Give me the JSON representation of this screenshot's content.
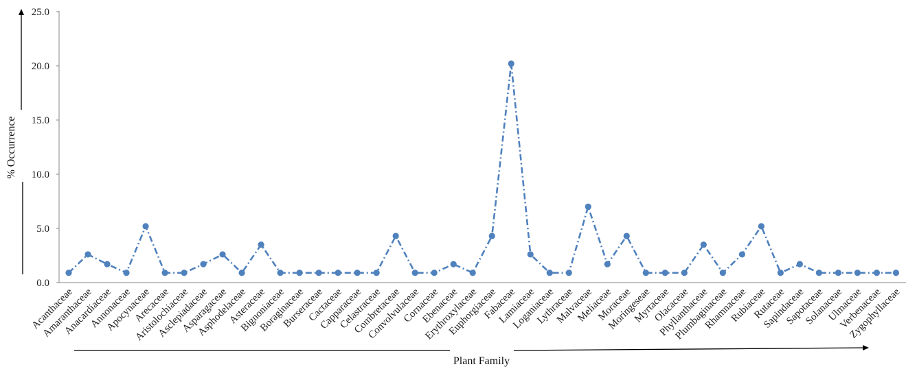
{
  "chart_data": {
    "type": "line",
    "xlabel": "Plant Family",
    "ylabel": "% Occurrence",
    "ylim": [
      0,
      25
    ],
    "yticks": [
      "0.0",
      "5.0",
      "10.0",
      "15.0",
      "20.0",
      "25.0"
    ],
    "grid": false,
    "legend": "none",
    "line_style": "dash-dot",
    "marker": "circle",
    "color": "#4f81bd",
    "categories": [
      "Acanthaceae",
      "Amaranthaceae",
      "Anacardiaceae",
      "Annonaceae",
      "Apocynaceae",
      "Arecaceae",
      "Aristolochiaceae",
      "Asclepiadaceae",
      "Asparagaceae",
      "Asphodelaceae",
      "Asteraceae",
      "Bignoniaceae",
      "Boraginaceae",
      "Burseraceae",
      "Cactaceae",
      "Capparaceae",
      "Celastraceae",
      "Combretaceae",
      "Convolvulaceae",
      "Cornaceae",
      "Ebenaceae",
      "Erythroxylaceae",
      "Euphorgiaceae",
      "Fabaceae",
      "Lamiaceae",
      "Loganiaceae",
      "Lythraceae",
      "Malvaceae",
      "Meliaceae",
      "Moraceae",
      "Moringeseae",
      "Myrtaceae",
      "Olacaceae",
      "Phyllanthaceae",
      "Plumbaginaceae",
      "Rhamnaceae",
      "Rubiaceae",
      "Rutaceae",
      "Sapindaceae",
      "Sapotaceae",
      "Solanaceae",
      "Ulmaceae",
      "Verbenaceae",
      "Zygophyllaceae"
    ],
    "series": [
      {
        "values": [
          0.9,
          2.6,
          1.7,
          0.9,
          5.2,
          0.9,
          0.9,
          1.7,
          2.6,
          0.9,
          3.5,
          0.9,
          0.9,
          0.9,
          0.9,
          0.9,
          0.9,
          4.3,
          0.9,
          0.9,
          1.7,
          0.9,
          4.3,
          20.2,
          2.6,
          0.9,
          0.9,
          7.0,
          1.7,
          4.3,
          0.9,
          0.9,
          0.9,
          3.5,
          0.9,
          2.6,
          5.2,
          0.9,
          1.7,
          0.9,
          0.9,
          0.9,
          0.9,
          0.9
        ]
      }
    ]
  }
}
